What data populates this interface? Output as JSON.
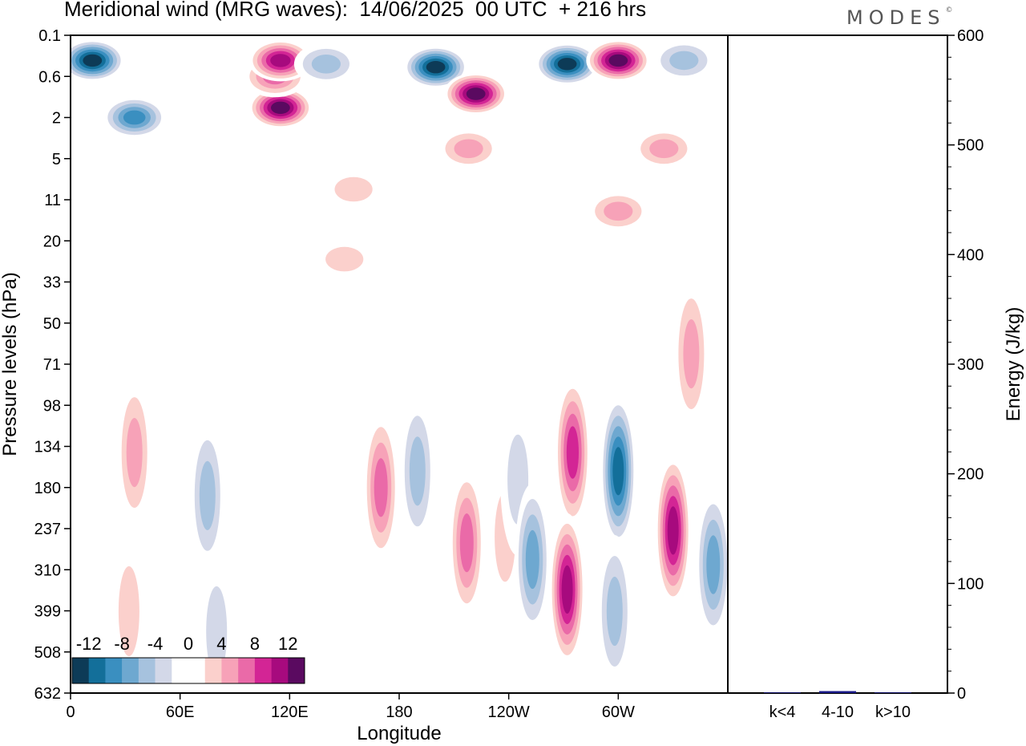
{
  "title": "Meridional wind (MRG waves):  14/06/2025  00 UTC  + 216 hrs",
  "logo": {
    "text": "MODES",
    "mark": "©"
  },
  "colors": {
    "scale": [
      "#0d3b57",
      "#136f9a",
      "#3a8fc0",
      "#6ea8d0",
      "#a6c2de",
      "#d3d8e8",
      "#ffffff",
      "#ffffff",
      "#fbd0cc",
      "#f7a2b8",
      "#ea6aa8",
      "#d32595",
      "#a70a7e",
      "#5a0a60"
    ],
    "energy_bar": "#1c1c8a"
  },
  "chart_data": [
    {
      "type": "heatmap",
      "title": "Meridional wind (MRG waves):  14/06/2025  00 UTC  + 216 hrs",
      "xlabel": "Longitude",
      "ylabel": "Pressure levels (hPa)",
      "x_tick_labels": [
        "0",
        "60E",
        "120E",
        "180",
        "120W",
        "60W"
      ],
      "x_ticks_deg": [
        0,
        60,
        120,
        180,
        240,
        300
      ],
      "xlim_deg": [
        0,
        360
      ],
      "pressure_levels": [
        "0.1",
        "0.6",
        "2",
        "5",
        "11",
        "20",
        "33",
        "50",
        "71",
        "98",
        "134",
        "180",
        "237",
        "310",
        "399",
        "508",
        "632"
      ],
      "colorbar": {
        "labels": [
          "-12",
          "-8",
          "-4",
          "0",
          "4",
          "8",
          "12"
        ],
        "levels": [
          -14,
          -12,
          -10,
          -8,
          -6,
          -4,
          -2,
          0,
          2,
          4,
          6,
          8,
          10,
          12,
          14
        ]
      },
      "features": [
        {
          "lon": 12,
          "level": 0.3,
          "value": -14
        },
        {
          "lon": 35,
          "level": 2,
          "value": -9
        },
        {
          "lon": 115,
          "level": 1.5,
          "value": 13
        },
        {
          "lon": 112,
          "level": 0.6,
          "value": 8
        },
        {
          "lon": 115,
          "level": 0.3,
          "value": 12
        },
        {
          "lon": 140,
          "level": 0.35,
          "value": -5
        },
        {
          "lon": 200,
          "level": 0.4,
          "value": -14
        },
        {
          "lon": 222,
          "level": 1.0,
          "value": 13
        },
        {
          "lon": 272,
          "level": 0.35,
          "value": -14
        },
        {
          "lon": 300,
          "level": 0.3,
          "value": 13
        },
        {
          "lon": 336,
          "level": 0.3,
          "value": -6
        },
        {
          "lon": 218,
          "level": 4,
          "value": 6
        },
        {
          "lon": 325,
          "level": 4,
          "value": 6
        },
        {
          "lon": 300,
          "level": 13,
          "value": 5
        },
        {
          "lon": 155,
          "level": 9,
          "value": 3
        },
        {
          "lon": 150,
          "level": 25,
          "value": 3
        },
        {
          "lon": 340,
          "level": 65,
          "value": 5
        },
        {
          "lon": 75,
          "level": 190,
          "value": -5
        },
        {
          "lon": 35,
          "level": 140,
          "value": 5
        },
        {
          "lon": 170,
          "level": 180,
          "value": 8
        },
        {
          "lon": 190,
          "level": 160,
          "value": -6
        },
        {
          "lon": 217,
          "level": 260,
          "value": 7
        },
        {
          "lon": 238,
          "level": 250,
          "value": 4
        },
        {
          "lon": 245,
          "level": 170,
          "value": -4
        },
        {
          "lon": 253,
          "level": 290,
          "value": -8
        },
        {
          "lon": 275,
          "level": 140,
          "value": 10
        },
        {
          "lon": 272,
          "level": 350,
          "value": 11
        },
        {
          "lon": 300,
          "level": 160,
          "value": -11
        },
        {
          "lon": 298,
          "level": 400,
          "value": -6
        },
        {
          "lon": 330,
          "level": 240,
          "value": 12
        },
        {
          "lon": 352,
          "level": 300,
          "value": -7
        },
        {
          "lon": 32,
          "level": 400,
          "value": 3
        },
        {
          "lon": 80,
          "level": 450,
          "value": -4
        }
      ]
    },
    {
      "type": "bar",
      "ylabel": "Energy (J/kg)",
      "categories": [
        "k<4",
        "4-10",
        "k>10"
      ],
      "values": [
        0.2,
        1.8,
        0.1
      ],
      "ylim": [
        0,
        600
      ],
      "y_tick_labels": [
        "0",
        "100",
        "200",
        "300",
        "400",
        "500",
        "600"
      ]
    }
  ]
}
